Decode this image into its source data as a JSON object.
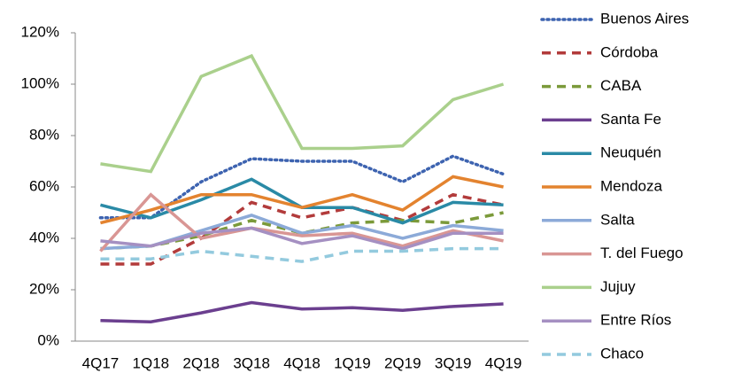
{
  "chart_data": {
    "type": "line",
    "categories": [
      "4Q17",
      "1Q18",
      "2Q18",
      "3Q18",
      "4Q18",
      "1Q19",
      "2Q19",
      "3Q19",
      "4Q19"
    ],
    "ylim": [
      0,
      120
    ],
    "yticks": [
      {
        "value": 0,
        "label": "0%"
      },
      {
        "value": 20,
        "label": "20%"
      },
      {
        "value": 40,
        "label": "40%"
      },
      {
        "value": 60,
        "label": "60%"
      },
      {
        "value": 80,
        "label": "80%"
      },
      {
        "value": 100,
        "label": "100%"
      },
      {
        "value": 120,
        "label": "120%"
      }
    ],
    "grid": false,
    "legend": "right",
    "series": [
      {
        "name": "Buenos Aires",
        "color": "#3d63b0",
        "dash": "dot",
        "values": [
          48,
          48,
          62,
          71,
          70,
          70,
          62,
          72,
          65
        ]
      },
      {
        "name": "Córdoba",
        "color": "#b23b3b",
        "dash": "dash",
        "values": [
          30,
          30,
          40,
          54,
          48,
          52,
          47,
          57,
          53
        ]
      },
      {
        "name": "CABA",
        "color": "#7b9a3a",
        "dash": "dash",
        "values": [
          36,
          37,
          41,
          47,
          42,
          46,
          47,
          46,
          50
        ]
      },
      {
        "name": "Santa Fe",
        "color": "#6b3f8f",
        "dash": "solid",
        "values": [
          8,
          7.5,
          11,
          15,
          12.5,
          13,
          12,
          13.5,
          14.5
        ]
      },
      {
        "name": "Neuquén",
        "color": "#2a8aa6",
        "dash": "solid",
        "values": [
          53,
          48,
          55,
          63,
          52,
          52,
          46,
          54,
          53
        ]
      },
      {
        "name": "Mendoza",
        "color": "#e3832f",
        "dash": "solid",
        "values": [
          46,
          51,
          57,
          57,
          52,
          57,
          51,
          64,
          60
        ]
      },
      {
        "name": "Salta",
        "color": "#8caad8",
        "dash": "solid",
        "values": [
          36,
          37,
          43,
          49,
          42,
          45,
          40,
          45,
          43
        ]
      },
      {
        "name": "T. del Fuego",
        "color": "#d99694",
        "dash": "solid",
        "values": [
          35,
          57,
          40,
          44,
          41,
          42,
          37,
          43,
          39
        ]
      },
      {
        "name": "Jujuy",
        "color": "#aad08c",
        "dash": "solid",
        "values": [
          69,
          66,
          103,
          111,
          75,
          75,
          76,
          94,
          100
        ]
      },
      {
        "name": "Entre Ríos",
        "color": "#a590c2",
        "dash": "solid",
        "values": [
          39,
          37,
          42,
          44,
          38,
          41,
          36,
          42,
          42
        ]
      },
      {
        "name": "Chaco",
        "color": "#93cade",
        "dash": "dash",
        "values": [
          32,
          32,
          35,
          33,
          31,
          35,
          35,
          36,
          36
        ]
      }
    ]
  }
}
